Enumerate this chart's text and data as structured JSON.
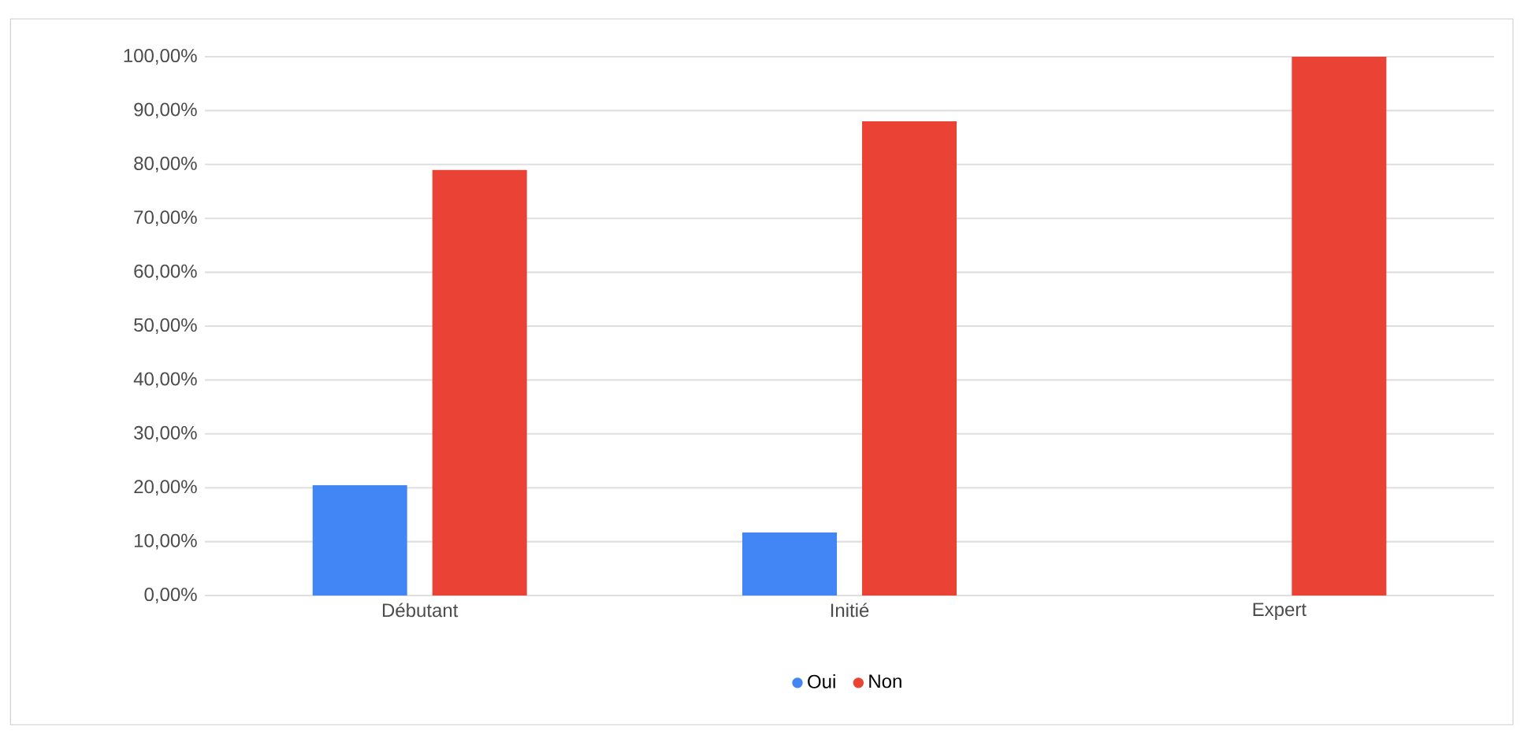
{
  "chart_data": {
    "type": "bar",
    "categories": [
      "Débutant",
      "Initié",
      "Expert"
    ],
    "series": [
      {
        "name": "Oui",
        "color": "#4285f4",
        "values": [
          20.5,
          11.7,
          0
        ]
      },
      {
        "name": "Non",
        "color": "#ea4335",
        "values": [
          79,
          88,
          100
        ]
      }
    ],
    "ylim": [
      0,
      100
    ],
    "yticks": [
      {
        "value": 0,
        "label": "0,00%"
      },
      {
        "value": 10,
        "label": "10,00%"
      },
      {
        "value": 20,
        "label": "20,00%"
      },
      {
        "value": 30,
        "label": "30,00%"
      },
      {
        "value": 40,
        "label": "40,00%"
      },
      {
        "value": 50,
        "label": "50,00%"
      },
      {
        "value": 60,
        "label": "60,00%"
      },
      {
        "value": 70,
        "label": "70,00%"
      },
      {
        "value": 80,
        "label": "80,00%"
      },
      {
        "value": 90,
        "label": "90,00%"
      },
      {
        "value": 100,
        "label": "100,00%"
      }
    ],
    "grid": "y",
    "legend": "bottom",
    "marker": "circle"
  }
}
